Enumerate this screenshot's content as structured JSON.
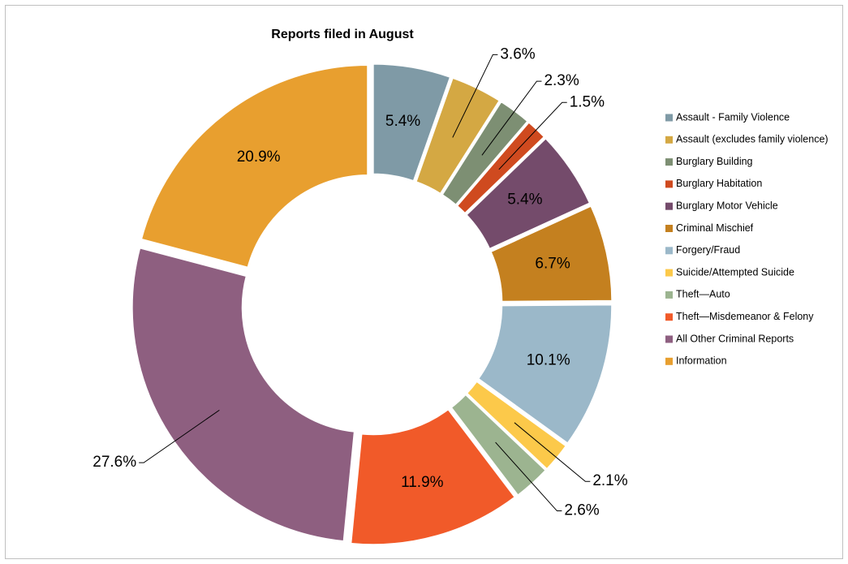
{
  "chart_data": {
    "type": "donut",
    "title": "Reports filed in August",
    "categories": [
      "Assault - Family Violence",
      "Assault (excludes family violence)",
      "Burglary Building",
      "Burglary Habitation",
      "Burglary Motor Vehicle",
      "Criminal Mischief",
      "Forgery/Fraud",
      "Suicide/Attempted Suicide",
      "Theft—Auto",
      "Theft—Misdemeanor & Felony",
      "All Other Criminal Reports",
      "Information"
    ],
    "values": [
      5.4,
      3.6,
      2.3,
      1.5,
      5.4,
      6.7,
      10.1,
      2.1,
      2.6,
      11.9,
      27.6,
      20.9
    ],
    "value_labels": [
      "5.4%",
      "3.6%",
      "2.3%",
      "1.5%",
      "5.4%",
      "6.7%",
      "10.1%",
      "2.1%",
      "2.6%",
      "11.9%",
      "27.6%",
      "20.9%"
    ],
    "colors": [
      "#7f9aa6",
      "#d4a843",
      "#7d8f73",
      "#cf4a1f",
      "#744b6b",
      "#c4801f",
      "#9bb8c9",
      "#fcc94a",
      "#9cb490",
      "#f15a29",
      "#8e5f80",
      "#e89f2f"
    ],
    "legend": "right"
  }
}
